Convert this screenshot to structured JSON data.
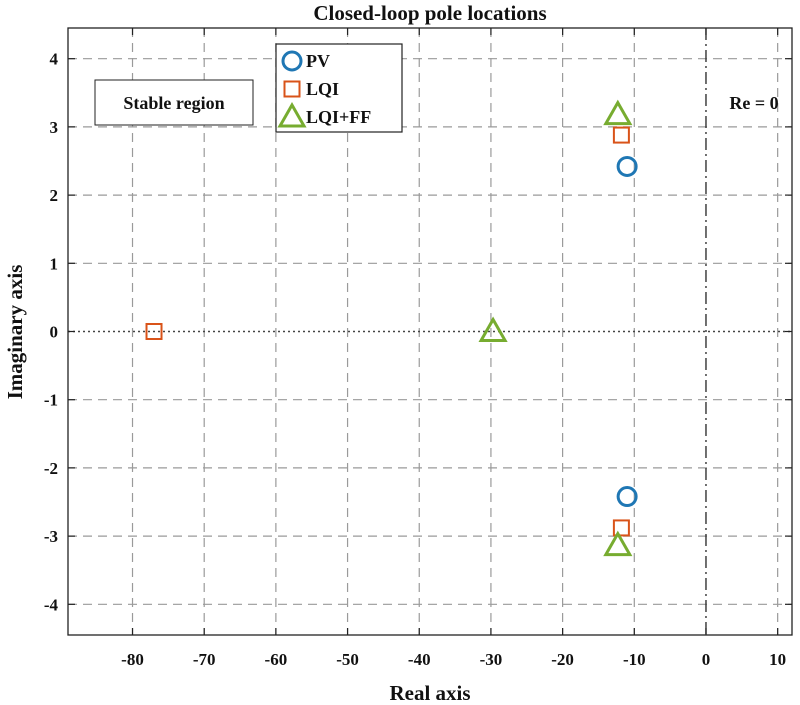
{
  "chart_data": {
    "type": "scatter",
    "title": "Closed-loop pole locations",
    "xlabel": "Real axis",
    "ylabel": "Imaginary axis",
    "xlim": [
      -89,
      12
    ],
    "ylim": [
      -4.45,
      4.45
    ],
    "xticks": [
      -80,
      -70,
      -60,
      -50,
      -40,
      -30,
      -20,
      -10,
      0,
      10
    ],
    "yticks": [
      -4,
      -3,
      -2,
      -1,
      0,
      1,
      2,
      3,
      4
    ],
    "grid": true,
    "legend_position": "top-center",
    "annotations": {
      "stable_region": "Stable region",
      "re_zero": "Re = 0"
    },
    "series": [
      {
        "name": "PV",
        "marker": "circle",
        "color": "#1f77b4",
        "points": [
          [
            -11.0,
            2.42
          ],
          [
            -11.0,
            -2.42
          ]
        ]
      },
      {
        "name": "LQI",
        "marker": "square",
        "color": "#d95319",
        "points": [
          [
            -77.0,
            0.0
          ],
          [
            -11.8,
            2.88
          ],
          [
            -11.8,
            -2.88
          ]
        ]
      },
      {
        "name": "LQI+FF",
        "marker": "triangle",
        "color": "#77ac30",
        "points": [
          [
            -29.7,
            0.0
          ],
          [
            -12.3,
            3.18
          ],
          [
            -12.3,
            -3.14
          ]
        ]
      }
    ]
  }
}
